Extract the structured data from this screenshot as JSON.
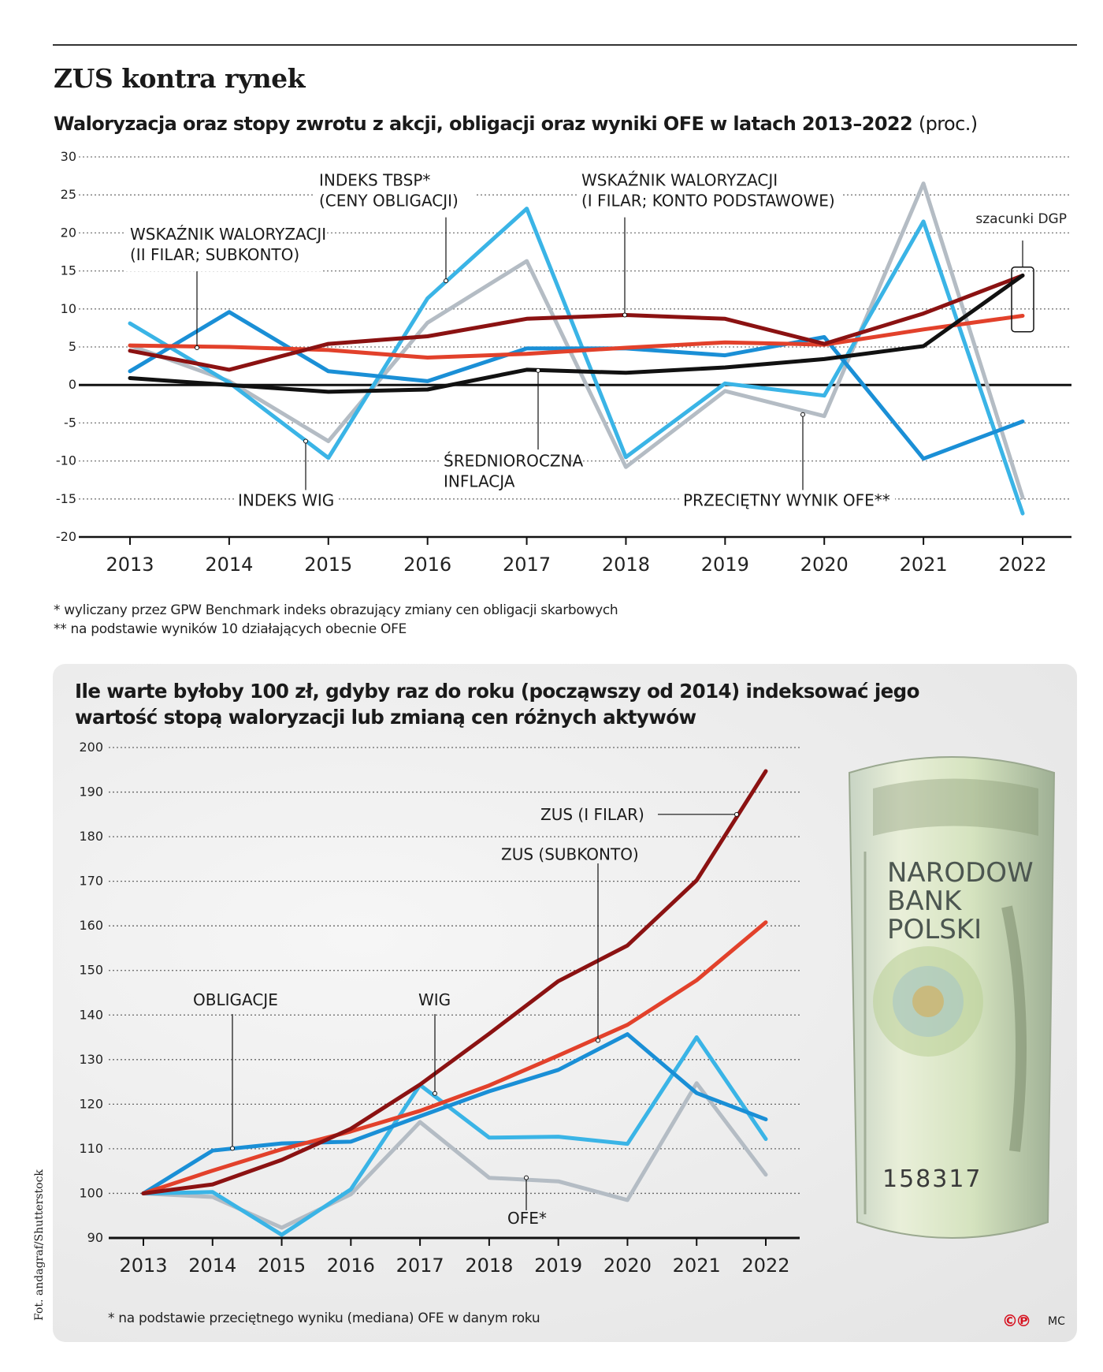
{
  "header": {
    "title": "ZUS kontra rynek",
    "subtitle": "Waloryzacja oraz stopy zwrotu z akcji, obligacji oraz wyniki OFE w latach 2013–2022",
    "subtitle_unit": "(proc.)"
  },
  "footnotes": [
    "* wyliczany przez GPW Benchmark indeks obrazujący zmiany cen obligacji skarbowych",
    "** na podstawie wyników 10 działających obecnie OFE"
  ],
  "second": {
    "title": "Ile warte byłoby 100 zł, gdyby raz do roku (począwszy od 2014) indeksować jego wartość stopą waloryzacji lub zmianą cen różnych aktywów",
    "footnote": "* na podstawie przeciętnego wyniku (mediana) OFE w danym roku"
  },
  "credit": "Fot. andagraf/Shutterstock",
  "logo": "©℗",
  "mc": "MC",
  "banknote": {
    "lines": [
      "NARODOW",
      "BANK",
      "POLSKI"
    ],
    "serial": "158317"
  },
  "colors": {
    "light_blue": "#3ab4e6",
    "blue": "#1a8fd6",
    "gray": "#b4bcc4",
    "dark_red": "#8b1212",
    "red": "#e2412b",
    "black": "#111111"
  },
  "chart_data": [
    {
      "type": "line",
      "title": "Waloryzacja oraz stopy zwrotu z akcji, obligacji oraz wyniki OFE w latach 2013–2022 (proc.)",
      "x": [
        "2013",
        "2014",
        "2015",
        "2016",
        "2017",
        "2018",
        "2019",
        "2020",
        "2021",
        "2022"
      ],
      "ylim": [
        -20,
        30
      ],
      "yticks": [
        30,
        25,
        20,
        15,
        10,
        5,
        0,
        -5,
        -10,
        -15,
        -20
      ],
      "grid": true,
      "series": [
        {
          "name": "INDEKS WIG",
          "color": "#3ab4e6",
          "values": [
            8.1,
            0.3,
            -9.6,
            11.4,
            23.2,
            -9.5,
            0.2,
            -1.4,
            21.5,
            -16.9
          ]
        },
        {
          "name": "PRZECIĘTNY WYNIK OFE**",
          "color": "#b4bcc4",
          "values": [
            5.2,
            0.5,
            -7.4,
            8.2,
            16.3,
            -10.8,
            -0.8,
            -4.1,
            26.5,
            -14.8
          ]
        },
        {
          "name": "INDEKS TBSP* (CENY OBLIGACJI)",
          "color": "#1a8fd6",
          "values": [
            1.8,
            9.6,
            1.8,
            0.5,
            4.8,
            4.8,
            3.9,
            6.3,
            -9.7,
            -4.8
          ]
        },
        {
          "name": "ŚREDNIOROCZNA INFLACJA",
          "color": "#111111",
          "values": [
            0.9,
            0.0,
            -0.9,
            -0.6,
            2.0,
            1.6,
            2.3,
            3.4,
            5.1,
            14.4
          ]
        },
        {
          "name": "WSKAŹNIK WALORYZACJI (II FILAR; SUBKONTO)",
          "color": "#e2412b",
          "values": [
            5.2,
            5.0,
            4.6,
            3.6,
            4.1,
            4.9,
            5.6,
            5.3,
            7.3,
            9.1
          ]
        },
        {
          "name": "WSKAŹNIK WALORYZACJI (I FILAR; KONTO PODSTAWOWE)",
          "color": "#8b1212",
          "values": [
            4.5,
            2.0,
            5.4,
            6.4,
            8.7,
            9.2,
            8.7,
            5.4,
            9.4,
            14.4
          ]
        }
      ],
      "annotations": {
        "estimate_box": "szacunki DGP",
        "labels": [
          {
            "lines": [
              "INDEKS TBSP*",
              "(CENY OBLIGACJI)"
            ]
          },
          {
            "lines": [
              "WSKAŹNIK WALORYZACJI",
              "(I FILAR; KONTO PODSTAWOWE)"
            ]
          },
          {
            "lines": [
              "WSKAŹNIK WALORYZACJI",
              "(II FILAR; SUBKONTO)"
            ]
          },
          {
            "lines": [
              "INDEKS WIG"
            ]
          },
          {
            "lines": [
              "ŚREDNIOROCZNA",
              "INFLACJA"
            ]
          },
          {
            "lines": [
              "PRZECIĘTNY WYNIK OFE**"
            ]
          }
        ]
      }
    },
    {
      "type": "line",
      "title": "Ile warte byłoby 100 zł, gdyby raz do roku (począwszy od 2014) indeksować jego wartość stopą waloryzacji lub zmianą cen różnych aktywów",
      "x": [
        "2013",
        "2014",
        "2015",
        "2016",
        "2017",
        "2018",
        "2019",
        "2020",
        "2021",
        "2022"
      ],
      "ylim": [
        90,
        200
      ],
      "yticks": [
        200,
        190,
        180,
        170,
        160,
        150,
        140,
        130,
        120,
        110,
        100,
        90
      ],
      "grid": true,
      "series": [
        {
          "name": "ZUS (I FILAR)",
          "color": "#8b1212",
          "values": [
            100,
            102,
            107.5,
            114.5,
            124.4,
            135.8,
            147.6,
            155.6,
            170.2,
            194.7
          ]
        },
        {
          "name": "ZUS (SUBKONTO)",
          "color": "#e2412b",
          "values": [
            100,
            105.1,
            109.9,
            113.9,
            118.5,
            124.2,
            130.9,
            137.8,
            147.8,
            160.8
          ]
        },
        {
          "name": "OBLIGACJE",
          "color": "#1a8fd6",
          "values": [
            100,
            109.6,
            111.2,
            111.6,
            117.3,
            122.9,
            127.7,
            135.7,
            122.5,
            116.6
          ]
        },
        {
          "name": "WIG",
          "color": "#3ab4e6",
          "values": [
            100,
            100.3,
            90.7,
            100.9,
            124.3,
            112.5,
            112.7,
            111.1,
            135.0,
            112.2
          ]
        },
        {
          "name": "OFE*",
          "color": "#b4bcc4",
          "values": [
            100,
            99.2,
            92.3,
            99.8,
            116.0,
            103.5,
            102.7,
            98.5,
            124.7,
            104.2
          ]
        }
      ],
      "annotations": {
        "labels": [
          {
            "lines": [
              "ZUS (I FILAR)"
            ]
          },
          {
            "lines": [
              "ZUS (SUBKONTO)"
            ]
          },
          {
            "lines": [
              "OBLIGACJE"
            ]
          },
          {
            "lines": [
              "WIG"
            ]
          },
          {
            "lines": [
              "OFE*"
            ]
          }
        ]
      }
    }
  ]
}
